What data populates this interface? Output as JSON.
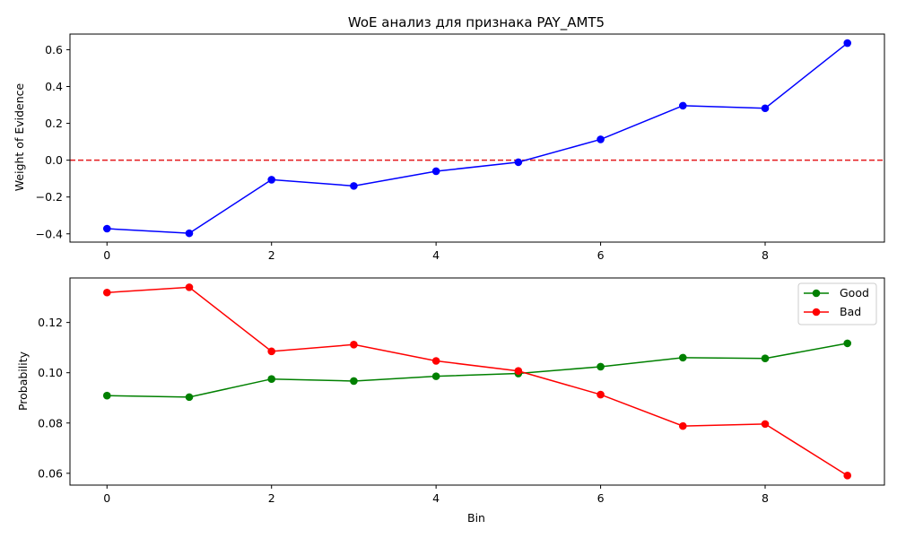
{
  "chart_data": [
    {
      "type": "line",
      "title": "WoE анализ для признака PAY_AMT5",
      "xlabel": "",
      "ylabel": "Weight of Evidence",
      "x": [
        0,
        1,
        2,
        3,
        4,
        5,
        6,
        7,
        8,
        9
      ],
      "xlim": [
        -0.45,
        9.45
      ],
      "ylim": [
        -0.445,
        0.685
      ],
      "xticks": [
        0,
        2,
        4,
        6,
        8
      ],
      "yticks": [
        -0.4,
        -0.2,
        0.0,
        0.2,
        0.4,
        0.6
      ],
      "ytick_labels": [
        "−0.4",
        "−0.2",
        "0.0",
        "0.2",
        "0.4",
        "0.6"
      ],
      "grid": false,
      "series": [
        {
          "values": [
            -0.372,
            -0.397,
            -0.106,
            -0.14,
            -0.06,
            -0.011,
            0.113,
            0.296,
            0.282,
            0.636
          ],
          "color": "#0000ff",
          "marker": "circle"
        }
      ],
      "reference_line": {
        "y": 0,
        "color": "#e41a1c",
        "style": "dashed"
      }
    },
    {
      "type": "line",
      "title": "",
      "xlabel": "Bin",
      "ylabel": "Probability",
      "x": [
        0,
        1,
        2,
        3,
        4,
        5,
        6,
        7,
        8,
        9
      ],
      "xlim": [
        -0.45,
        9.45
      ],
      "ylim": [
        0.0553,
        0.1377
      ],
      "xticks": [
        0,
        2,
        4,
        6,
        8
      ],
      "yticks": [
        0.06,
        0.08,
        0.1,
        0.12
      ],
      "ytick_labels": [
        "0.06",
        "0.08",
        "0.10",
        "0.12"
      ],
      "grid": false,
      "legend_position": "top-right",
      "series": [
        {
          "name": "Good",
          "values": [
            0.0909,
            0.0903,
            0.0975,
            0.0967,
            0.0986,
            0.0997,
            0.1024,
            0.106,
            0.1057,
            0.1117
          ],
          "color": "#008000",
          "marker": "circle"
        },
        {
          "name": "Bad",
          "values": [
            0.1319,
            0.134,
            0.1085,
            0.1112,
            0.1047,
            0.1007,
            0.0913,
            0.0788,
            0.0796,
            0.0591
          ],
          "color": "#ff0000",
          "marker": "circle"
        }
      ]
    }
  ]
}
